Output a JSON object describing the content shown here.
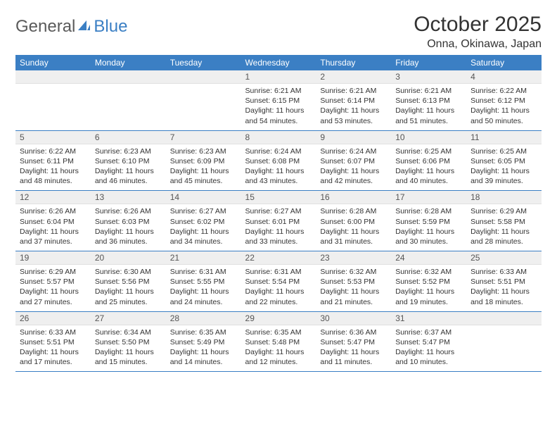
{
  "logo": {
    "part1": "General",
    "part2": "Blue"
  },
  "title": "October 2025",
  "location": "Onna, Okinawa, Japan",
  "colors": {
    "header_bg": "#3b7fc4",
    "header_text": "#ffffff",
    "daynum_bg": "#efefef",
    "row_border": "#3b7fc4",
    "body_bg": "#ffffff",
    "text": "#333333"
  },
  "typography": {
    "title_fontsize": 30,
    "location_fontsize": 16,
    "header_fontsize": 12,
    "cell_fontsize": 10.5
  },
  "layout": {
    "columns": 7,
    "rows": 5
  },
  "day_headers": [
    "Sunday",
    "Monday",
    "Tuesday",
    "Wednesday",
    "Thursday",
    "Friday",
    "Saturday"
  ],
  "weeks": [
    [
      {
        "n": "",
        "sr": "",
        "ss": "",
        "dl": ""
      },
      {
        "n": "",
        "sr": "",
        "ss": "",
        "dl": ""
      },
      {
        "n": "",
        "sr": "",
        "ss": "",
        "dl": ""
      },
      {
        "n": "1",
        "sr": "6:21 AM",
        "ss": "6:15 PM",
        "dl": "11 hours and 54 minutes."
      },
      {
        "n": "2",
        "sr": "6:21 AM",
        "ss": "6:14 PM",
        "dl": "11 hours and 53 minutes."
      },
      {
        "n": "3",
        "sr": "6:21 AM",
        "ss": "6:13 PM",
        "dl": "11 hours and 51 minutes."
      },
      {
        "n": "4",
        "sr": "6:22 AM",
        "ss": "6:12 PM",
        "dl": "11 hours and 50 minutes."
      }
    ],
    [
      {
        "n": "5",
        "sr": "6:22 AM",
        "ss": "6:11 PM",
        "dl": "11 hours and 48 minutes."
      },
      {
        "n": "6",
        "sr": "6:23 AM",
        "ss": "6:10 PM",
        "dl": "11 hours and 46 minutes."
      },
      {
        "n": "7",
        "sr": "6:23 AM",
        "ss": "6:09 PM",
        "dl": "11 hours and 45 minutes."
      },
      {
        "n": "8",
        "sr": "6:24 AM",
        "ss": "6:08 PM",
        "dl": "11 hours and 43 minutes."
      },
      {
        "n": "9",
        "sr": "6:24 AM",
        "ss": "6:07 PM",
        "dl": "11 hours and 42 minutes."
      },
      {
        "n": "10",
        "sr": "6:25 AM",
        "ss": "6:06 PM",
        "dl": "11 hours and 40 minutes."
      },
      {
        "n": "11",
        "sr": "6:25 AM",
        "ss": "6:05 PM",
        "dl": "11 hours and 39 minutes."
      }
    ],
    [
      {
        "n": "12",
        "sr": "6:26 AM",
        "ss": "6:04 PM",
        "dl": "11 hours and 37 minutes."
      },
      {
        "n": "13",
        "sr": "6:26 AM",
        "ss": "6:03 PM",
        "dl": "11 hours and 36 minutes."
      },
      {
        "n": "14",
        "sr": "6:27 AM",
        "ss": "6:02 PM",
        "dl": "11 hours and 34 minutes."
      },
      {
        "n": "15",
        "sr": "6:27 AM",
        "ss": "6:01 PM",
        "dl": "11 hours and 33 minutes."
      },
      {
        "n": "16",
        "sr": "6:28 AM",
        "ss": "6:00 PM",
        "dl": "11 hours and 31 minutes."
      },
      {
        "n": "17",
        "sr": "6:28 AM",
        "ss": "5:59 PM",
        "dl": "11 hours and 30 minutes."
      },
      {
        "n": "18",
        "sr": "6:29 AM",
        "ss": "5:58 PM",
        "dl": "11 hours and 28 minutes."
      }
    ],
    [
      {
        "n": "19",
        "sr": "6:29 AM",
        "ss": "5:57 PM",
        "dl": "11 hours and 27 minutes."
      },
      {
        "n": "20",
        "sr": "6:30 AM",
        "ss": "5:56 PM",
        "dl": "11 hours and 25 minutes."
      },
      {
        "n": "21",
        "sr": "6:31 AM",
        "ss": "5:55 PM",
        "dl": "11 hours and 24 minutes."
      },
      {
        "n": "22",
        "sr": "6:31 AM",
        "ss": "5:54 PM",
        "dl": "11 hours and 22 minutes."
      },
      {
        "n": "23",
        "sr": "6:32 AM",
        "ss": "5:53 PM",
        "dl": "11 hours and 21 minutes."
      },
      {
        "n": "24",
        "sr": "6:32 AM",
        "ss": "5:52 PM",
        "dl": "11 hours and 19 minutes."
      },
      {
        "n": "25",
        "sr": "6:33 AM",
        "ss": "5:51 PM",
        "dl": "11 hours and 18 minutes."
      }
    ],
    [
      {
        "n": "26",
        "sr": "6:33 AM",
        "ss": "5:51 PM",
        "dl": "11 hours and 17 minutes."
      },
      {
        "n": "27",
        "sr": "6:34 AM",
        "ss": "5:50 PM",
        "dl": "11 hours and 15 minutes."
      },
      {
        "n": "28",
        "sr": "6:35 AM",
        "ss": "5:49 PM",
        "dl": "11 hours and 14 minutes."
      },
      {
        "n": "29",
        "sr": "6:35 AM",
        "ss": "5:48 PM",
        "dl": "11 hours and 12 minutes."
      },
      {
        "n": "30",
        "sr": "6:36 AM",
        "ss": "5:47 PM",
        "dl": "11 hours and 11 minutes."
      },
      {
        "n": "31",
        "sr": "6:37 AM",
        "ss": "5:47 PM",
        "dl": "11 hours and 10 minutes."
      },
      {
        "n": "",
        "sr": "",
        "ss": "",
        "dl": ""
      }
    ]
  ],
  "labels": {
    "sunrise": "Sunrise: ",
    "sunset": "Sunset: ",
    "daylight": "Daylight: "
  }
}
